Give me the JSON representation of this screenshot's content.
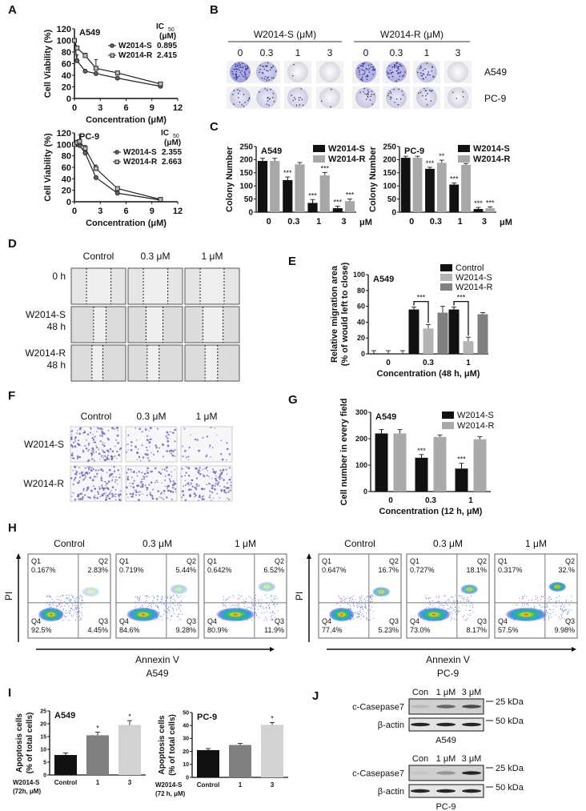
{
  "panel_labels": [
    "A",
    "B",
    "C",
    "D",
    "E",
    "F",
    "G",
    "H",
    "I",
    "J"
  ],
  "chart_data": [
    {
      "type": "line",
      "title": "A549",
      "xlabel": "Concentration (μM)",
      "ylabel": "Cell Viability (%)",
      "xlim": [
        0,
        12
      ],
      "xticks": [
        0,
        3,
        6,
        9,
        12
      ],
      "ylim": [
        0,
        120
      ],
      "yticks": [
        0,
        20,
        40,
        60,
        80,
        100,
        120
      ],
      "ic50_label": "IC",
      "ic50_sub": "50",
      "ic50_unit": "(μM)",
      "series": [
        {
          "name": "W2014-S",
          "marker": "circle",
          "ic50": "0.895",
          "x": [
            0,
            0.3,
            1.25,
            2.5,
            5,
            10
          ],
          "y": [
            100,
            65,
            47,
            43,
            35,
            21
          ],
          "err": [
            2,
            10,
            2,
            2,
            2,
            2
          ]
        },
        {
          "name": "W2014-R",
          "marker": "square",
          "ic50": "2.415",
          "x": [
            0,
            0.3,
            1.25,
            2.5,
            5,
            10
          ],
          "y": [
            100,
            87,
            74,
            52,
            44,
            25
          ],
          "err": [
            2,
            3,
            4,
            15,
            2,
            2
          ]
        }
      ]
    },
    {
      "type": "line",
      "title": "PC-9",
      "xlabel": "Concentration (μM)",
      "ylabel": "Cell Viability (%)",
      "xlim": [
        0,
        12
      ],
      "xticks": [
        0,
        3,
        6,
        9,
        12
      ],
      "ylim": [
        0,
        120
      ],
      "yticks": [
        0,
        20,
        40,
        60,
        80,
        100,
        120
      ],
      "ic50_label": "IC",
      "ic50_sub": "50",
      "ic50_unit": "(μM)",
      "series": [
        {
          "name": "W2014-S",
          "marker": "circle",
          "ic50": "2.355",
          "x": [
            0,
            0.3,
            0.6,
            1.25,
            2.5,
            5,
            10
          ],
          "y": [
            100,
            100,
            98,
            85,
            42,
            15,
            3
          ],
          "err": [
            3,
            3,
            3,
            6,
            3,
            2,
            1
          ]
        },
        {
          "name": "W2014-R",
          "marker": "square",
          "ic50": "2.663",
          "x": [
            0,
            0.3,
            0.6,
            1.25,
            2.5,
            5,
            10
          ],
          "y": [
            100,
            103,
            105,
            93,
            58,
            23,
            4
          ],
          "err": [
            3,
            4,
            12,
            5,
            6,
            2,
            1
          ]
        }
      ]
    },
    {
      "type": "bar",
      "title": "A549",
      "ylabel": [
        "Colony Number"
      ],
      "xlabel": "",
      "unit": "μM",
      "categories": [
        "0",
        "0.3",
        "1",
        "3"
      ],
      "ylim": [
        0,
        250
      ],
      "yticks": [
        0,
        50,
        100,
        150,
        200,
        250
      ],
      "series": [
        {
          "name": "W2014-S",
          "color": "#111111",
          "values": [
            195,
            122,
            35,
            15
          ],
          "errors": [
            10,
            12,
            13,
            8
          ],
          "sig": [
            "",
            "***",
            "***",
            "***"
          ]
        },
        {
          "name": "W2014-R",
          "color": "#a8a8a8",
          "values": [
            195,
            182,
            140,
            42
          ],
          "errors": [
            10,
            7,
            11,
            8
          ],
          "sig": [
            "",
            "",
            "***",
            "***"
          ]
        }
      ]
    },
    {
      "type": "bar",
      "title": "PC-9",
      "ylabel": [
        "Colony Number"
      ],
      "xlabel": "",
      "unit": "μM",
      "categories": [
        "0",
        "0.3",
        "1",
        "3"
      ],
      "ylim": [
        0,
        250
      ],
      "yticks": [
        0,
        50,
        100,
        150,
        200,
        250
      ],
      "series": [
        {
          "name": "W2014-S",
          "color": "#111111",
          "values": [
            207,
            165,
            105,
            12
          ],
          "errors": [
            6,
            6,
            6,
            6
          ],
          "sig": [
            "",
            "***",
            "***",
            "***"
          ]
        },
        {
          "name": "W2014-R",
          "color": "#a8a8a8",
          "values": [
            207,
            188,
            180,
            15
          ],
          "errors": [
            6,
            10,
            5,
            5
          ],
          "sig": [
            "",
            "**",
            "***",
            "***"
          ]
        }
      ]
    },
    {
      "type": "bar",
      "title": "A549",
      "ylabel": [
        "Relative migration area",
        "(% of would left to close)"
      ],
      "xlabel": "Concentration (48 h, μM)",
      "unit": "",
      "categories": [
        "0",
        "0.3",
        "1"
      ],
      "ylim": [
        0,
        100
      ],
      "yticks": [
        0,
        20,
        40,
        60,
        80,
        100
      ],
      "series": [
        {
          "name": "Control",
          "color": "#111111",
          "values": [
            0,
            56,
            56
          ],
          "errors": [
            4,
            3,
            3
          ],
          "sig": [
            "",
            "",
            ""
          ]
        },
        {
          "name": "W2014-S",
          "color": "#b4b4b4",
          "values": [
            0,
            32,
            16
          ],
          "errors": [
            4,
            5,
            5
          ],
          "sig": [
            "",
            "",
            ""
          ]
        },
        {
          "name": "W2014-R",
          "color": "#808080",
          "values": [
            0,
            52,
            50
          ],
          "errors": [
            4,
            8,
            2
          ],
          "sig": [
            "",
            "",
            ""
          ]
        }
      ],
      "comparisons": [
        {
          "category": 1,
          "from": 0,
          "to": 1,
          "label": "***"
        },
        {
          "category": 2,
          "from": 0,
          "to": 1,
          "label": "***"
        }
      ]
    },
    {
      "type": "bar",
      "title": "A549",
      "ylabel": [
        "Cell number in every field"
      ],
      "xlabel": "Concentration (12 h, μM)",
      "unit": "",
      "categories": [
        "0",
        "0.3",
        "1"
      ],
      "ylim": [
        0,
        300
      ],
      "yticks": [
        0,
        100,
        200,
        300
      ],
      "series": [
        {
          "name": "W2014-S",
          "color": "#111111",
          "values": [
            220,
            128,
            87
          ],
          "errors": [
            15,
            12,
            20
          ],
          "sig": [
            "",
            "***",
            "***"
          ]
        },
        {
          "name": "W2014-R",
          "color": "#aaaaaa",
          "values": [
            220,
            207,
            198
          ],
          "errors": [
            15,
            7,
            10
          ],
          "sig": [
            "",
            "",
            ""
          ]
        }
      ]
    },
    {
      "type": "bar",
      "title": "A549",
      "ylabel": [
        "Apoptosis cells",
        "(% of total cells)"
      ],
      "xlabel": "",
      "unit": "",
      "xprefix": [
        "W2014-S",
        "(72h, μM)"
      ],
      "categories": [
        "Control",
        "1",
        "3"
      ],
      "ylim": [
        0,
        25
      ],
      "yticks": [
        0,
        5,
        10,
        15,
        20,
        25
      ],
      "series": [
        {
          "name": "W2014-S",
          "colors": [
            "#111111",
            "#808080",
            "#d2d2d2"
          ],
          "values": [
            7.8,
            15.5,
            19.5
          ],
          "errors": [
            0.8,
            1.2,
            1.7
          ],
          "sig": [
            "",
            "*",
            "*"
          ]
        }
      ]
    },
    {
      "type": "bar",
      "title": "PC-9",
      "ylabel": [
        "Apoptosis cells",
        "(% of total cells)"
      ],
      "xlabel": "",
      "unit": "",
      "xprefix": [
        "W2014-S",
        "(72 h, μM)"
      ],
      "categories": [
        "Control",
        "1",
        "3"
      ],
      "ylim": [
        0,
        50
      ],
      "yticks": [
        0,
        10,
        20,
        30,
        40,
        50
      ],
      "series": [
        {
          "name": "W2014-S",
          "colors": [
            "#111111",
            "#808080",
            "#d2d2d2"
          ],
          "values": [
            21,
            25,
            40.5
          ],
          "errors": [
            1.2,
            1.2,
            1.8
          ],
          "sig": [
            "",
            "",
            "*"
          ]
        }
      ]
    }
  ],
  "panel_b": {
    "groups": [
      {
        "label": "W2014-S (μM)",
        "doses": [
          "0",
          "0.3",
          "1",
          "3"
        ]
      },
      {
        "label": "W2014-R (μM)",
        "doses": [
          "0",
          "0.3",
          "1",
          "3"
        ]
      }
    ],
    "rows": [
      "A549",
      "PC-9"
    ]
  },
  "panel_d": {
    "columns": [
      "Control",
      "0.3 μM",
      "1 μM"
    ],
    "rows": [
      [
        "0 h"
      ],
      [
        "W2014-S",
        "48 h"
      ],
      [
        "W2014-R",
        "48 h"
      ]
    ]
  },
  "panel_f": {
    "columns": [
      "Control",
      "0.3 μM",
      "1 μM"
    ],
    "rows": [
      "W2014-S",
      "W2014-R"
    ]
  },
  "panel_h": {
    "quadrants": [
      "Q1",
      "Q2",
      "Q3",
      "Q4"
    ],
    "cell_lines": [
      {
        "name": "A549",
        "x_axis": "Annexin V",
        "y_axis": "PI",
        "plots": [
          {
            "title": "Control",
            "values": [
              "0.167%",
              "2.83%",
              "4.45%",
              "92.5%"
            ]
          },
          {
            "title": "0.3 μM",
            "values": [
              "0.719%",
              "5.44%",
              "9.28%",
              "84.6%"
            ]
          },
          {
            "title": "1 μM",
            "values": [
              "0.642%",
              "6.52%",
              "11.9%",
              "80.9%"
            ]
          }
        ]
      },
      {
        "name": "PC-9",
        "x_axis": "Annexin V",
        "y_axis": "PI",
        "plots": [
          {
            "title": "Control",
            "values": [
              "0.647%",
              "16.7%",
              "5.23%",
              "77.4%"
            ]
          },
          {
            "title": "0.3 μM",
            "values": [
              "0.727%",
              "18.1%",
              "8.17%",
              "73.0%"
            ]
          },
          {
            "title": "1 μM",
            "values": [
              "0.317%",
              "32.%",
              "9.98%",
              "57.5%"
            ]
          }
        ]
      }
    ]
  },
  "panel_j": {
    "blots": [
      {
        "cell_line": "A549",
        "lanes": [
          "Con",
          "1 μM",
          "3 μM"
        ],
        "rows": [
          {
            "label": "c-Casepase7",
            "marker": "25 kDa"
          },
          {
            "label": "β-actin",
            "marker": "50 kDa"
          }
        ]
      },
      {
        "cell_line": "PC-9",
        "lanes": [
          "Con",
          "1 μM",
          "3 μM"
        ],
        "rows": [
          {
            "label": "c-Casepase7",
            "marker": "25 kDa"
          },
          {
            "label": "β-actin",
            "marker": "50 kDa"
          }
        ]
      }
    ]
  }
}
